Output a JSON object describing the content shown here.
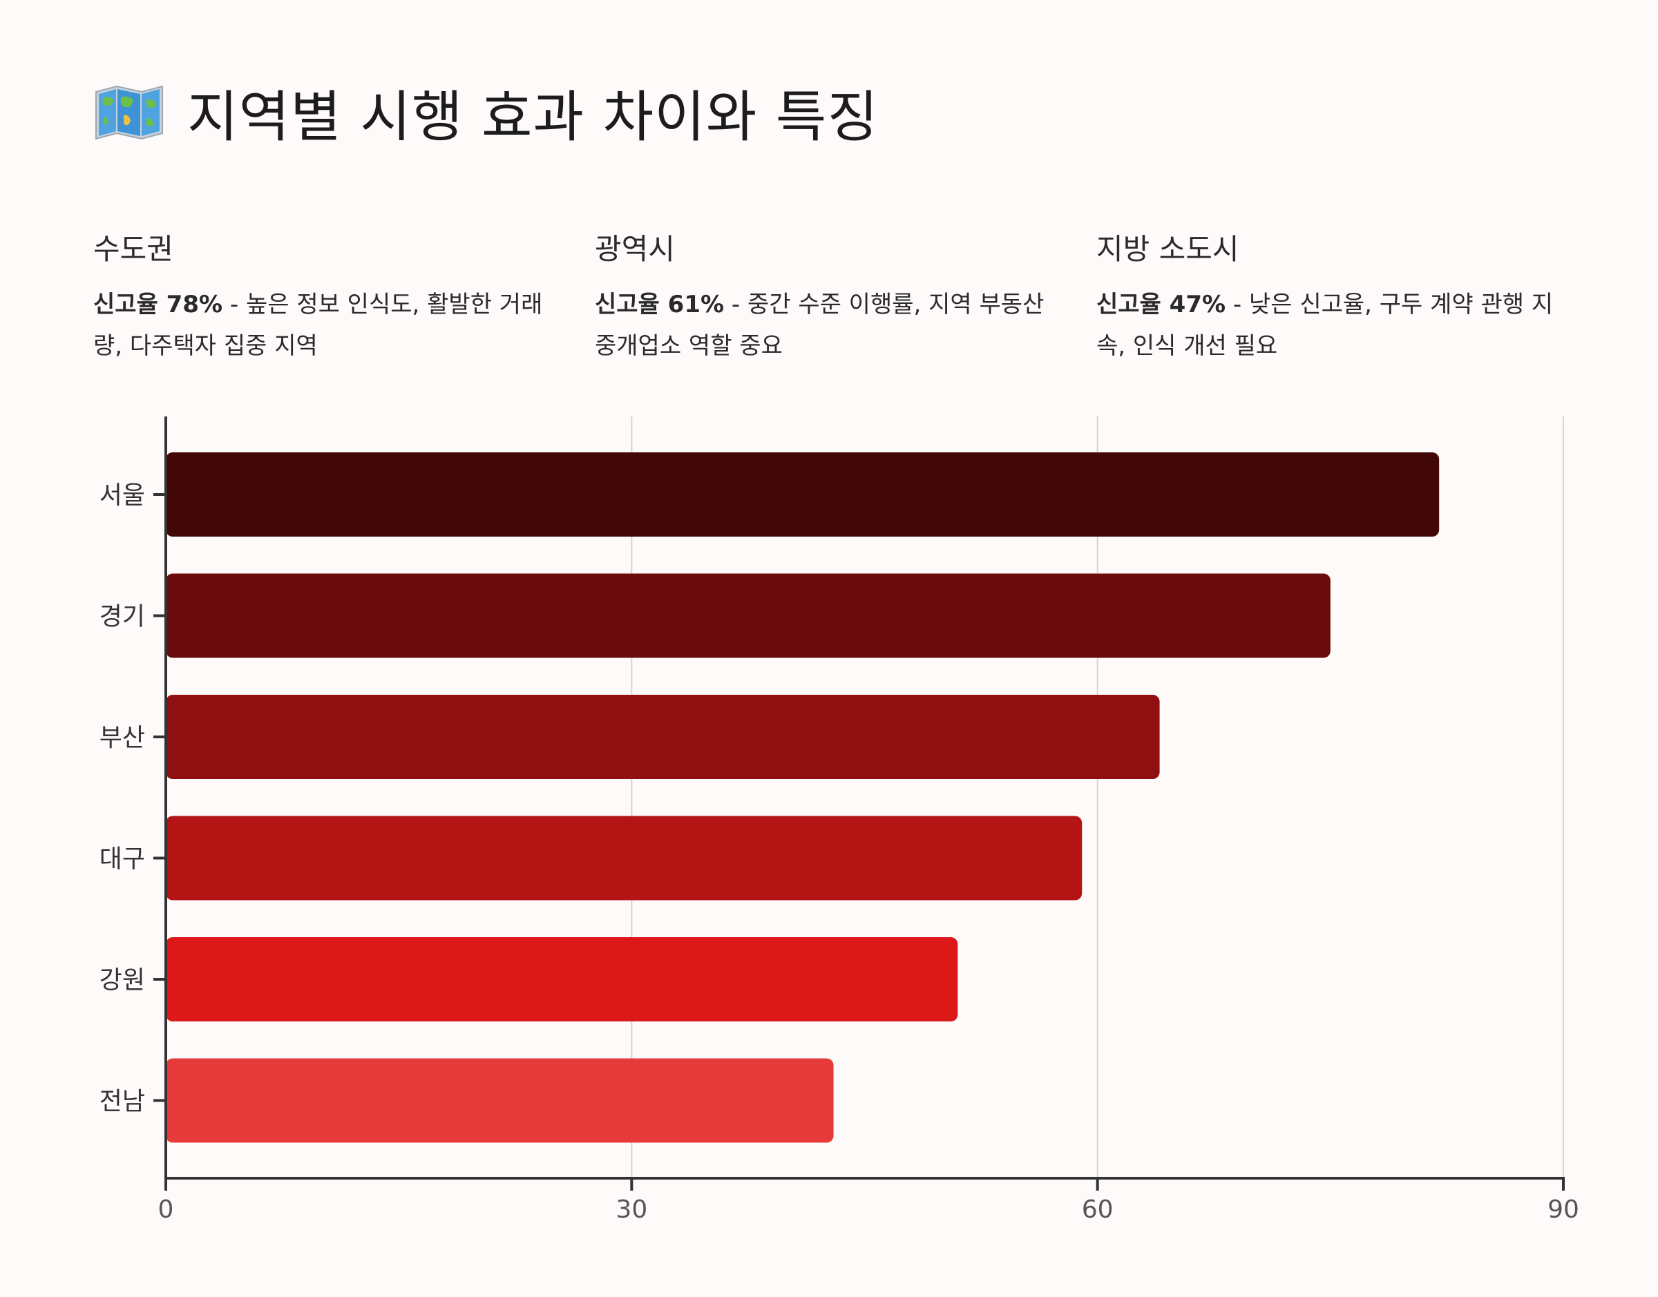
{
  "page": {
    "title": "지역별 시행 효과 차이와 특징",
    "title_icon": "world-map-icon"
  },
  "regions": [
    {
      "name": "수도권",
      "rate_label": "신고율 78%",
      "description": " - 높은 정보 인식도, 활발한 거래량, 다주택자 집중 지역"
    },
    {
      "name": "광역시",
      "rate_label": "신고율 61%",
      "description": " - 중간 수준 이행률, 지역 부동산 중개업소 역할 중요"
    },
    {
      "name": "지방 소도시",
      "rate_label": "신고율 47%",
      "description": " - 낮은 신고율, 구두 계약 관행 지속, 인식 개선 필요"
    }
  ],
  "chart_data": {
    "type": "bar",
    "orientation": "horizontal",
    "categories": [
      "서울",
      "경기",
      "부산",
      "대구",
      "강원",
      "전남"
    ],
    "values": [
      82,
      75,
      64,
      59,
      51,
      43
    ],
    "colors": [
      "#420808",
      "#6b0c0c",
      "#901012",
      "#b51415",
      "#dc1819",
      "#e73a3a"
    ],
    "xlim": [
      0,
      90
    ],
    "xticks": [
      0,
      30,
      60,
      90
    ],
    "grid": "vertical",
    "title": "",
    "xlabel": "",
    "ylabel": ""
  }
}
